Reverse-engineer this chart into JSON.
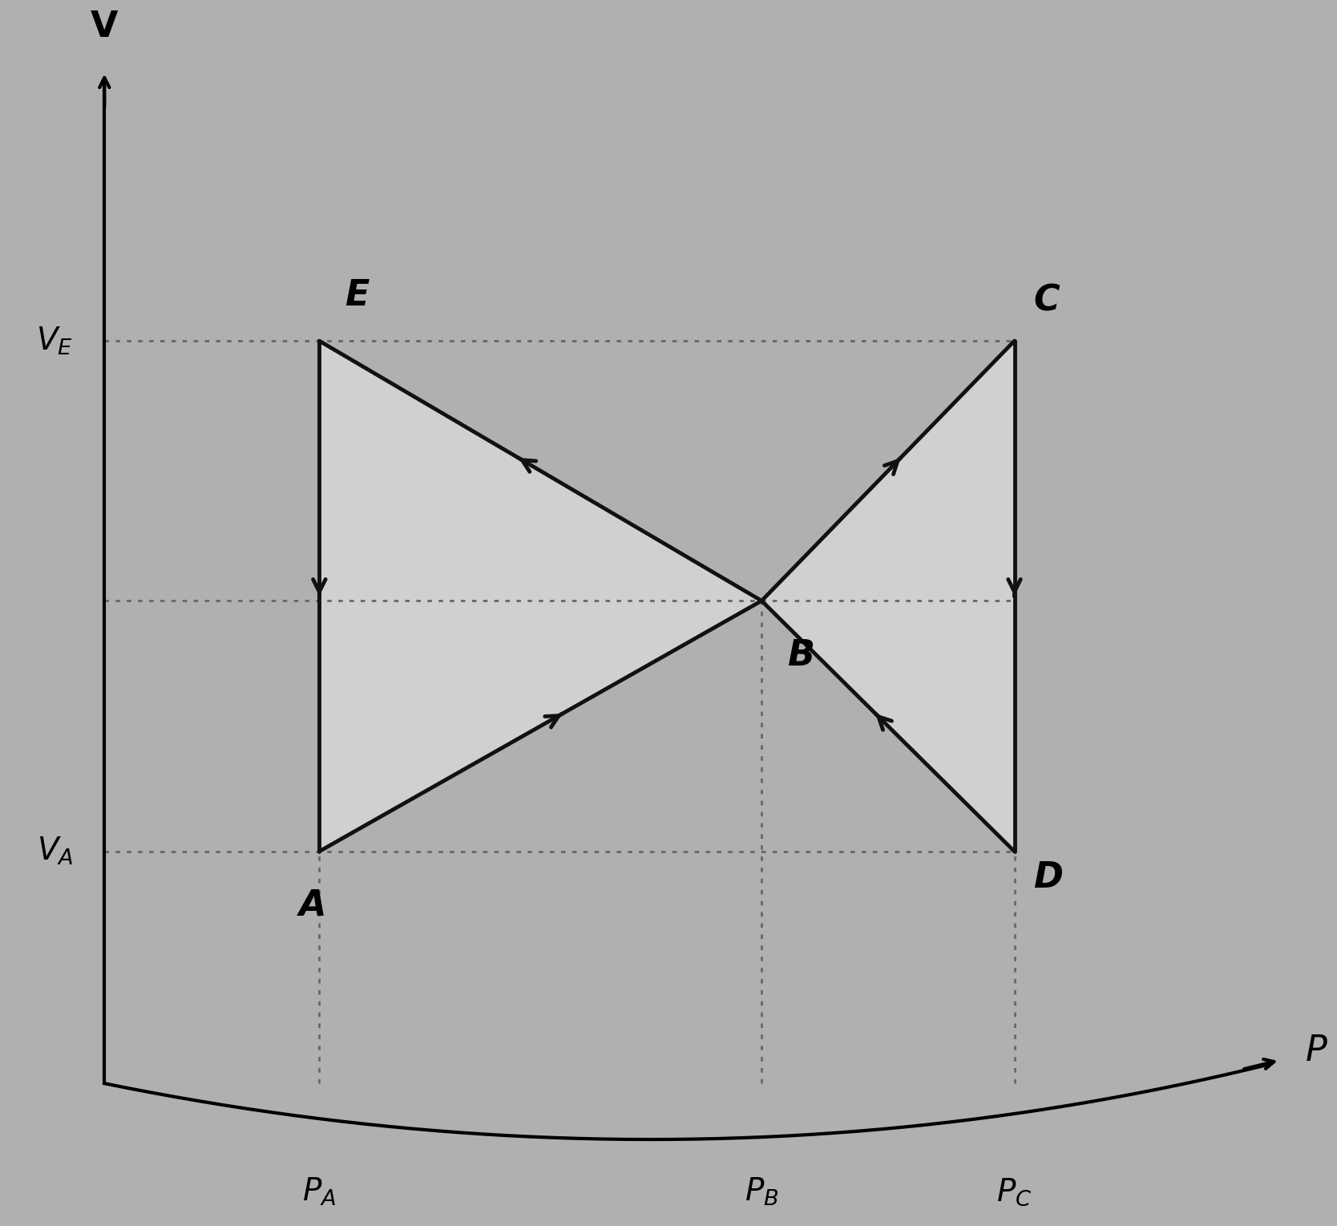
{
  "points": {
    "A": [
      2.0,
      1.5
    ],
    "E": [
      2.0,
      7.0
    ],
    "B": [
      5.5,
      4.2
    ],
    "C": [
      7.5,
      7.0
    ],
    "D": [
      7.5,
      1.5
    ]
  },
  "VA": 1.5,
  "VB": 4.2,
  "VE": 7.0,
  "PA": 2.0,
  "PB": 5.5,
  "PC": 7.5,
  "bg_color": "#b0b0b0",
  "fill_color": "#d0d0d0",
  "line_color": "#111111",
  "dot_color": "#666666",
  "xlim": [
    -0.5,
    10.0
  ],
  "ylim": [
    -2.5,
    10.5
  ],
  "figsize": [
    16.68,
    15.29
  ],
  "dpi": 100,
  "label_fontsize": 32,
  "tick_fontsize": 28,
  "lw": 3.5,
  "arrow_scale": 28
}
